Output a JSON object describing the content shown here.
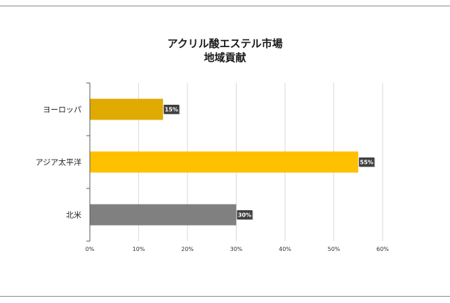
{
  "chart_data": {
    "type": "bar",
    "orientation": "horizontal",
    "title": "アクリル酸エステル市場",
    "subtitle": "地域貢献",
    "categories": [
      "ヨーロッパ",
      "アジア太平洋",
      "北米"
    ],
    "values": [
      15,
      55,
      30
    ],
    "data_labels": [
      "15%",
      "55%",
      "30%"
    ],
    "colors": [
      "#E0AA00",
      "#FFC000",
      "#808080"
    ],
    "xlim": [
      0,
      60
    ],
    "x_ticks": [
      "0%",
      "10%",
      "20%",
      "30%",
      "40%",
      "50%",
      "60%"
    ],
    "x_tick_values": [
      0,
      10,
      20,
      30,
      40,
      50,
      60
    ],
    "grid": true,
    "xlabel": "",
    "ylabel": "",
    "legend": "none"
  }
}
